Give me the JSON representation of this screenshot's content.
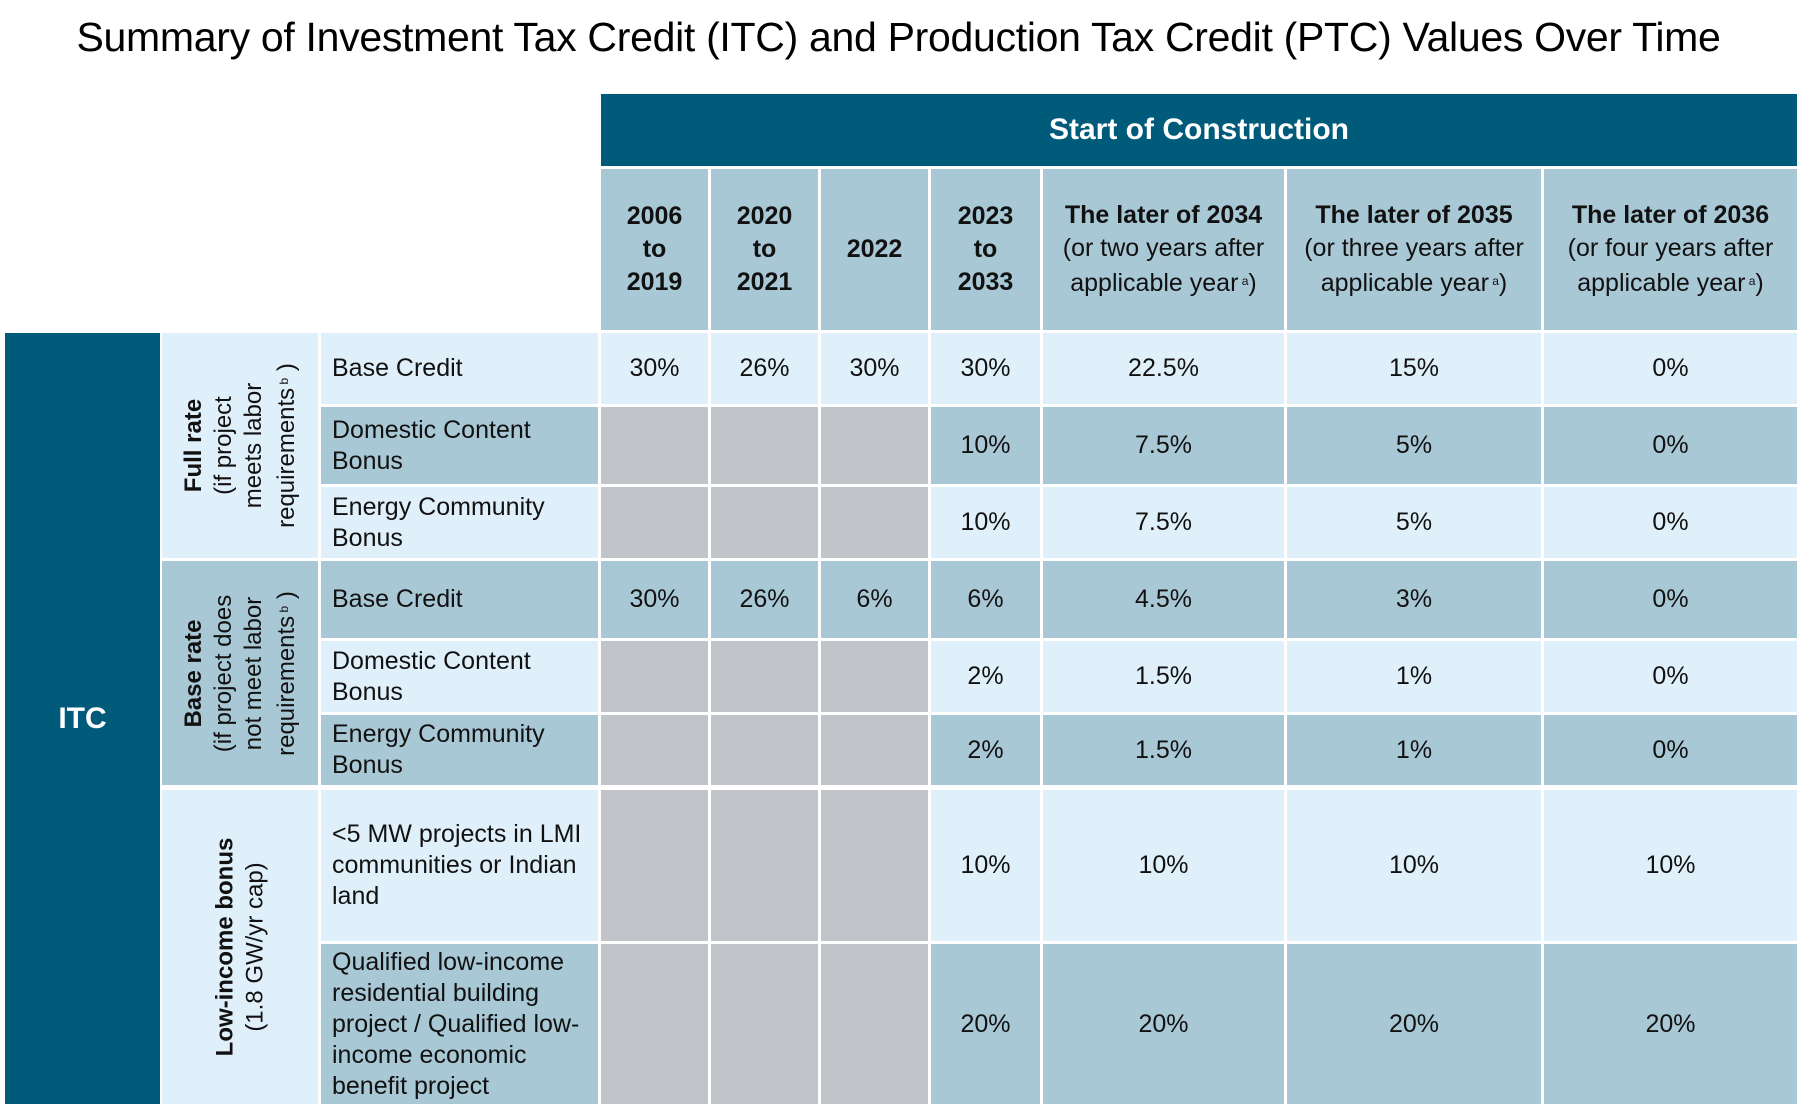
{
  "title": "Summary of Investment Tax Credit (ITC) and Production Tax Credit (PTC) Values Over Time",
  "header": {
    "group_label": "Start of Construction",
    "columns": [
      {
        "lines": [
          "2006",
          "to",
          "2019"
        ]
      },
      {
        "lines": [
          "2020",
          "to",
          "2021"
        ]
      },
      {
        "lines": [
          "2022"
        ]
      },
      {
        "lines": [
          "2023",
          "to",
          "2033"
        ]
      },
      {
        "lines": [
          "The later of 2034",
          "(or two years after",
          "applicable year"
        ],
        "footnote": "a"
      },
      {
        "lines": [
          "The later of 2035",
          "(or three years after",
          "applicable year"
        ],
        "footnote": "a"
      },
      {
        "lines": [
          "The later of 2036",
          "(or four years after",
          "applicable year"
        ],
        "footnote": "a"
      }
    ]
  },
  "table": {
    "section_label": "ITC",
    "groups": [
      {
        "title": "Full rate",
        "lines": [
          "(if project",
          "meets labor",
          "requirements"
        ],
        "footnote": "b"
      },
      {
        "title": "Base rate",
        "lines": [
          "(if project does",
          "not meet labor",
          "requirements"
        ],
        "footnote": "b"
      },
      {
        "title": "Low-income bonus",
        "lines": [
          "(1.8 GW/yr cap)"
        ]
      }
    ],
    "rows": [
      {
        "label": "Base Credit",
        "values": [
          "30%",
          "26%",
          "30%",
          "30%",
          "22.5%",
          "15%",
          "0%"
        ]
      },
      {
        "label": "Domestic Content Bonus",
        "values": [
          "",
          "",
          "",
          "10%",
          "7.5%",
          "5%",
          "0%"
        ]
      },
      {
        "label": "Energy Community Bonus",
        "values": [
          "",
          "",
          "",
          "10%",
          "7.5%",
          "5%",
          "0%"
        ]
      },
      {
        "label": "Base Credit",
        "values": [
          "30%",
          "26%",
          "6%",
          "6%",
          "4.5%",
          "3%",
          "0%"
        ]
      },
      {
        "label": "Domestic Content Bonus",
        "values": [
          "",
          "",
          "",
          "2%",
          "1.5%",
          "1%",
          "0%"
        ]
      },
      {
        "label": "Energy Community Bonus",
        "values": [
          "",
          "",
          "",
          "2%",
          "1.5%",
          "1%",
          "0%"
        ]
      },
      {
        "label": "<5 MW projects in LMI communities or Indian land",
        "values": [
          "",
          "",
          "",
          "10%",
          "10%",
          "10%",
          "10%"
        ]
      },
      {
        "label": "Qualified low-income residential building project / Qualified low-income economic benefit project",
        "values": [
          "",
          "",
          "",
          "20%",
          "20%",
          "20%",
          "20%"
        ]
      }
    ]
  },
  "colors": {
    "dark": "#005a7a",
    "mid": "#a9c8d6",
    "light": "#e0f0fb",
    "not_applicable": "#c1c4c9"
  }
}
